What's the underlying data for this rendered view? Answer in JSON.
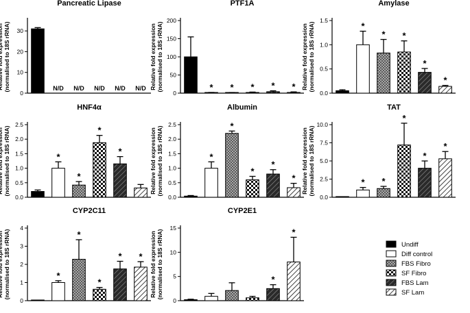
{
  "legend": {
    "entries": [
      {
        "label": "Undiff",
        "pattern": "solid"
      },
      {
        "label": "Diff control",
        "pattern": "white"
      },
      {
        "label": "FBS Fibro",
        "pattern": "dots"
      },
      {
        "label": "SF Fibro",
        "pattern": "checker"
      },
      {
        "label": "FBS Lam",
        "pattern": "darkhatch"
      },
      {
        "label": "SF Lam",
        "pattern": "lighthatch"
      }
    ]
  },
  "chart_data": [
    {
      "type": "bar",
      "title": "Pancreatic Lipase",
      "ylabel_line1": "Relative fold expression",
      "ylabel_line2": "(normalised to 18S rRNA)",
      "ylim": [
        0,
        35
      ],
      "yticks": [
        0,
        10,
        20,
        30
      ],
      "tick_labels": [
        "0",
        "10",
        "20",
        "30"
      ],
      "values": [
        31,
        null,
        null,
        null,
        null,
        null
      ],
      "errors": [
        0.6,
        null,
        null,
        null,
        null,
        null
      ],
      "significant": [
        false,
        false,
        false,
        false,
        false,
        false
      ],
      "bar_labels": [
        "",
        "N/D",
        "N/D",
        "N/D",
        "N/D",
        "N/D"
      ]
    },
    {
      "type": "bar",
      "title": "PTF1A",
      "ylabel_line1": "Relative fold expression",
      "ylabel_line2": "(normalised to 18S rRNA)",
      "ylim": [
        0,
        200
      ],
      "yticks": [
        0,
        50,
        100,
        150,
        200
      ],
      "tick_labels": [
        "0",
        "50",
        "100",
        "150",
        "200"
      ],
      "values": [
        100,
        1,
        1,
        1.5,
        4,
        2
      ],
      "errors": [
        55,
        1,
        0.8,
        1.5,
        2.5,
        1.5
      ],
      "significant": [
        false,
        true,
        true,
        true,
        true,
        true
      ],
      "bar_labels": [
        "",
        "",
        "",
        "",
        "",
        ""
      ]
    },
    {
      "type": "bar",
      "title": "Amylase",
      "ylabel_line1": "Relative fold expression",
      "ylabel_line2": "(normalised to 18S rRNA)",
      "ylim": [
        0,
        1.5
      ],
      "yticks": [
        0,
        0.5,
        1.0,
        1.5
      ],
      "tick_labels": [
        "0.0",
        "0.5",
        "1.0",
        "1.5"
      ],
      "values": [
        0.05,
        1.0,
        0.83,
        0.85,
        0.43,
        0.14
      ],
      "errors": [
        0.02,
        0.28,
        0.28,
        0.23,
        0.08,
        0.02
      ],
      "significant": [
        false,
        true,
        true,
        true,
        true,
        true
      ],
      "bar_labels": [
        "",
        "",
        "",
        "",
        "",
        ""
      ]
    },
    {
      "type": "bar",
      "title": "HNF4α",
      "ylabel_line1": "Relative fold expression",
      "ylabel_line2": "(normalised to 18S rRNA)",
      "ylim": [
        0,
        2.5
      ],
      "yticks": [
        0,
        0.5,
        1.0,
        1.5,
        2.0,
        2.5
      ],
      "tick_labels": [
        "0.0",
        "0.5",
        "1.0",
        "1.5",
        "2.0",
        "2.5"
      ],
      "values": [
        0.2,
        1.0,
        0.42,
        1.88,
        1.15,
        0.32
      ],
      "errors": [
        0.05,
        0.22,
        0.12,
        0.25,
        0.25,
        0.12
      ],
      "significant": [
        false,
        true,
        true,
        true,
        true,
        false
      ],
      "bar_labels": [
        "",
        "",
        "",
        "",
        "",
        ""
      ]
    },
    {
      "type": "bar",
      "title": "Albumin",
      "ylabel_line1": "Relative fold expression",
      "ylabel_line2": "(normalised to 18S rRNA)",
      "ylim": [
        0,
        2.5
      ],
      "yticks": [
        0,
        0.5,
        1.0,
        1.5,
        2.0,
        2.5
      ],
      "tick_labels": [
        "0.0",
        "0.5",
        "1.0",
        "1.5",
        "2.0",
        "2.5"
      ],
      "values": [
        0.04,
        1.0,
        2.2,
        0.6,
        0.8,
        0.33
      ],
      "errors": [
        0.02,
        0.22,
        0.08,
        0.12,
        0.15,
        0.15
      ],
      "significant": [
        false,
        true,
        true,
        true,
        true,
        true
      ],
      "bar_labels": [
        "",
        "",
        "",
        "",
        "",
        ""
      ]
    },
    {
      "type": "bar",
      "title": "TAT",
      "ylabel_line1": "Relative fold expression",
      "ylabel_line2": "(normalised to 18S rRNA)",
      "ylim": [
        0,
        10
      ],
      "yticks": [
        0,
        2.5,
        5.0,
        7.5,
        10.0
      ],
      "tick_labels": [
        "0.0",
        "2.5",
        "5.0",
        "7.5",
        "10.0"
      ],
      "values": [
        0.05,
        1.0,
        1.2,
        7.2,
        4.0,
        5.3
      ],
      "errors": [
        0.03,
        0.35,
        0.3,
        3.0,
        1.0,
        1.0
      ],
      "significant": [
        false,
        true,
        true,
        true,
        true,
        true
      ],
      "bar_labels": [
        "",
        "",
        "",
        "",
        "",
        ""
      ]
    },
    {
      "type": "bar",
      "title": "CYP2C11",
      "ylabel_line1": "Relative fold expression",
      "ylabel_line2": "(normalised to 18S rRNA)",
      "ylim": [
        0,
        4
      ],
      "yticks": [
        0,
        1,
        2,
        3,
        4
      ],
      "tick_labels": [
        "0",
        "1",
        "2",
        "3",
        "4"
      ],
      "values": [
        0.02,
        1.0,
        2.28,
        0.63,
        1.75,
        1.85
      ],
      "errors": [
        0.01,
        0.1,
        1.08,
        0.1,
        0.42,
        0.3
      ],
      "significant": [
        false,
        true,
        true,
        true,
        true,
        true
      ],
      "bar_labels": [
        "",
        "",
        "",
        "",
        "",
        ""
      ]
    },
    {
      "type": "bar",
      "title": "CYP2E1",
      "ylabel_line1": "Relative fold expression",
      "ylabel_line2": "(normalised to 18S rRNA)",
      "ylim": [
        0,
        15
      ],
      "yticks": [
        0,
        5,
        10,
        15
      ],
      "tick_labels": [
        "0",
        "5",
        "10",
        "15"
      ],
      "values": [
        0.2,
        0.9,
        2.1,
        0.6,
        2.5,
        8.0
      ],
      "errors": [
        0.1,
        0.6,
        1.6,
        0.3,
        0.8,
        5.1
      ],
      "significant": [
        false,
        false,
        false,
        false,
        true,
        true
      ],
      "bar_labels": [
        "",
        "",
        "",
        "",
        "",
        ""
      ]
    }
  ]
}
